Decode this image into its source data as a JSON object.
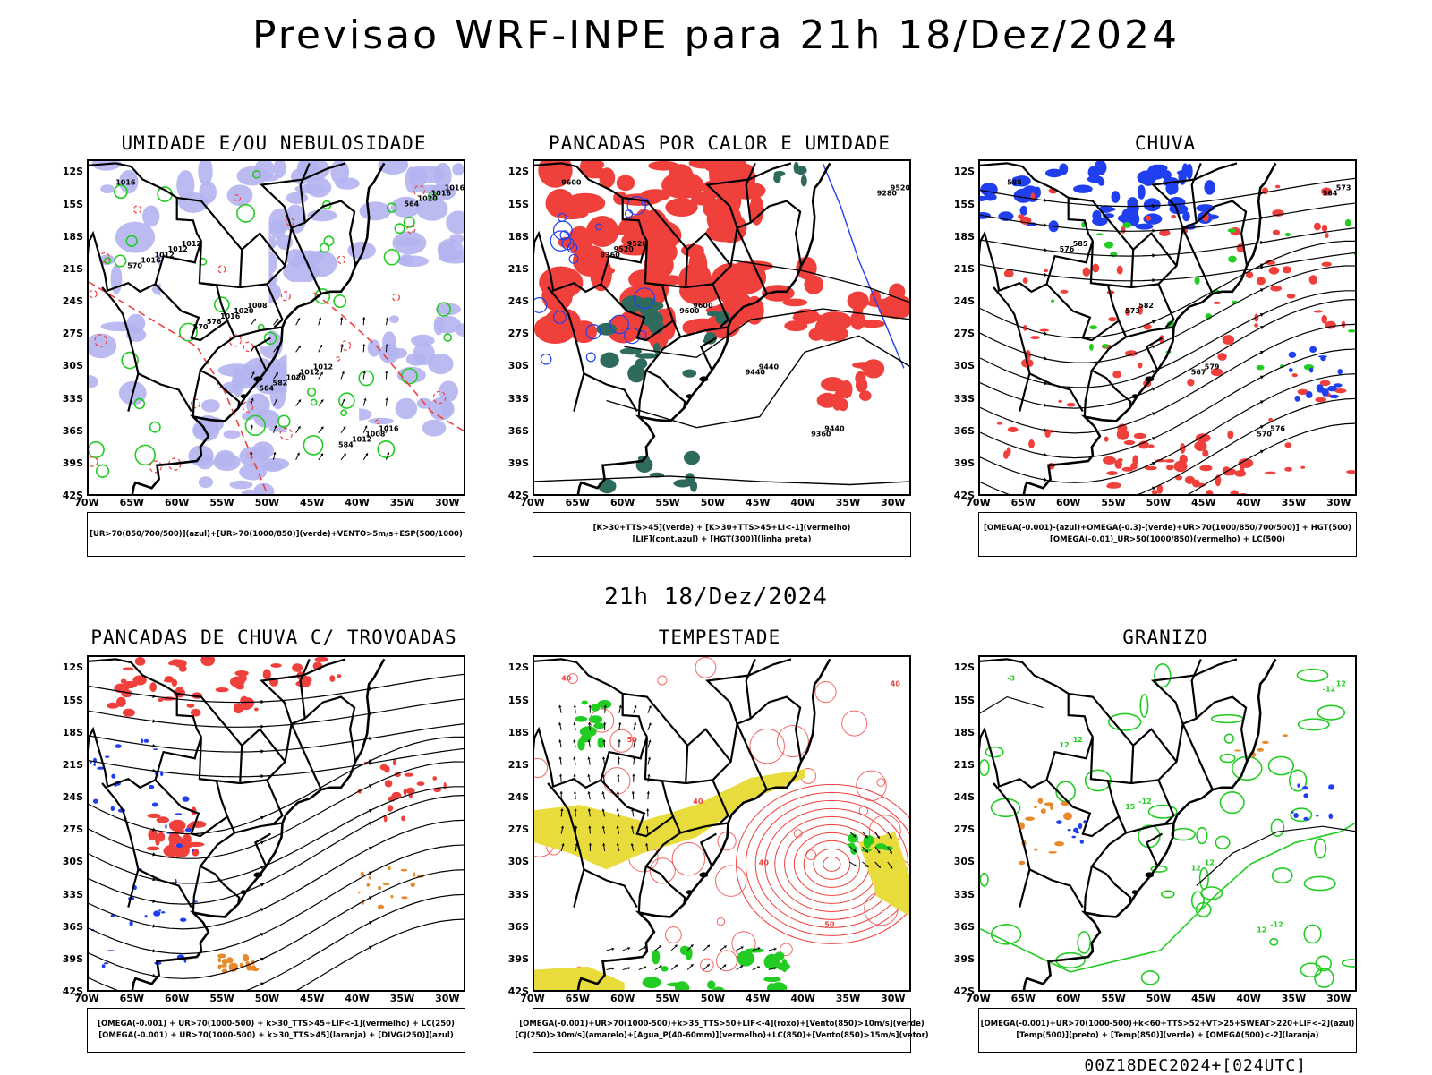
{
  "main_title": "Previsao WRF-INPE  para 21h 18/Dez/2024",
  "mid_time": "21h 18/Dez/2024",
  "footer": "00Z18DEC2024+[024UTC]",
  "axes": {
    "lat_ticks": [
      "12S",
      "15S",
      "18S",
      "21S",
      "24S",
      "27S",
      "30S",
      "33S",
      "36S",
      "39S",
      "42S"
    ],
    "lon_ticks": [
      "70W",
      "65W",
      "60W",
      "55W",
      "50W",
      "45W",
      "40W",
      "35W",
      "30W"
    ]
  },
  "colors": {
    "red": "#f0403c",
    "green": "#22cc22",
    "blue": "#2040f0",
    "lavender": "#b4b4f0",
    "darkteal": "#2f6b5c",
    "yellow": "#e8dc3c",
    "orange": "#e88a2c",
    "black": "#000000"
  },
  "chart_data": [
    {
      "type": "heatmap",
      "title": "UMIDADE E/OU NEBULOSIDADE",
      "legend": [
        "[UR>70(850/700/500)](azul)+[UR>70(1000/850)](verde)+VENTO>5m/s+ESP(500/1000)"
      ],
      "contour_labels": [
        "1016",
        "1012",
        "1008",
        "1012",
        "1016",
        "1016",
        "1012",
        "1020",
        "1012",
        "1008",
        "1016",
        "1012",
        "1016",
        "1020",
        "1012",
        "1020",
        "1016",
        "576",
        "582",
        "584",
        "564",
        "570",
        "570",
        "564"
      ]
    },
    {
      "type": "heatmap",
      "title": "PANCADAS POR CALOR E UMIDADE",
      "legend": [
        "[K>30+TTS>45](verde) + [K>30+TTS>45+LI<-1](vermelho)",
        "[LIF](cont.azul) + [HGT(300)](linha preta)"
      ],
      "contour_labels": [
        "9600",
        "9520",
        "9600",
        "9440",
        "9440",
        "9520",
        "9520",
        "9600",
        "9440",
        "9360",
        "9280",
        "9360"
      ]
    },
    {
      "type": "heatmap",
      "title": "CHUVA",
      "legend": [
        "[OMEGA(-0.001)-(azul)+OMEGA(-0.3)-(verde)+UR>70(1000/850/700/500)] + HGT(500)",
        "[OMEGA(-0.01)_UR>50(1000/850)(vermelho) + LC(500)"
      ],
      "contour_labels": [
        "585",
        "585",
        "582",
        "579",
        "576",
        "573",
        "576",
        "573",
        "567",
        "570",
        "564"
      ]
    },
    {
      "type": "heatmap",
      "title": "PANCADAS DE CHUVA C/ TROVOADAS",
      "legend": [
        "[OMEGA(-0.001) + UR>70(1000-500) + k>30_TTS>45+LIF<-1](vermelho) + LC(250)",
        "[OMEGA(-0.001) + UR>70(1000-500) + k>30_TTS>45](laranja) + [DIVG(250)](azul)"
      ],
      "contour_labels": []
    },
    {
      "type": "heatmap",
      "title": "TEMPESTADE",
      "legend": [
        "[OMEGA(-0.001)+UR>70(1000-500)+k>35_TTS>50+LIF<-4](roxo)+[Vento(850)>10m/s](verde)",
        "[CJ(250)>30m/s](amarelo)+[Agua_P(40-60mm)](vermelho)+LC(850)+[Vento(850)>15m/s](vetor)"
      ],
      "contour_labels": [
        "40",
        "50",
        "40",
        "40",
        "50",
        "40"
      ]
    },
    {
      "type": "heatmap",
      "title": "GRANIZO",
      "legend": [
        "[OMEGA(-0.001)+UR>70(1000-500)+k<60+TTS>52+VT>25+SWEAT>220+LIF<-2](azul)",
        "[Temp(500)](preto) + [Temp(850)](verde) + [OMEGA(500)<-2](laranja)"
      ],
      "contour_labels": [
        "-3",
        "12",
        "-12",
        "12",
        "-12",
        "12",
        "12",
        "15",
        "12",
        "12",
        "-12"
      ]
    }
  ]
}
